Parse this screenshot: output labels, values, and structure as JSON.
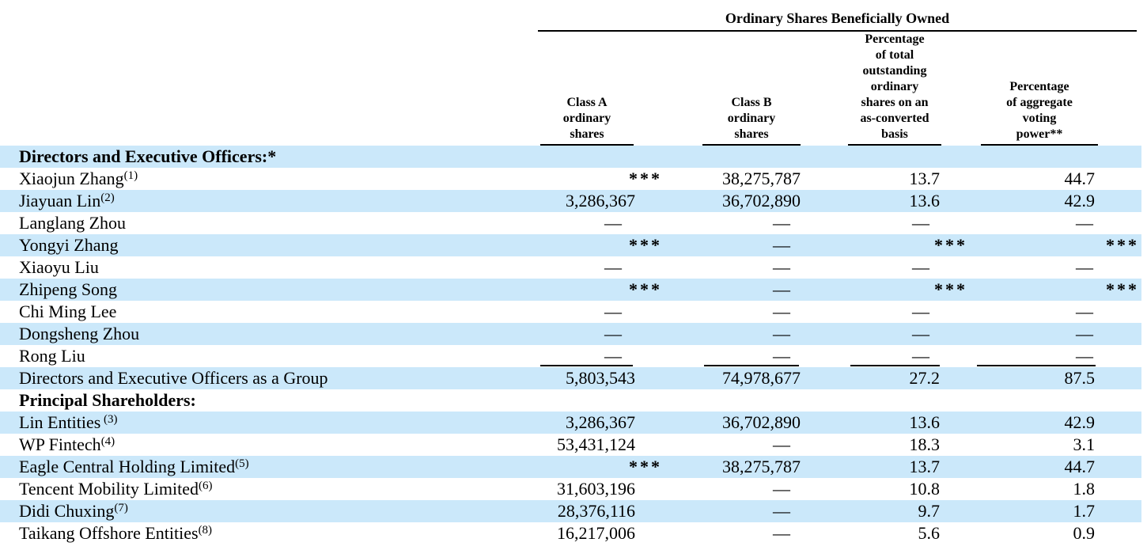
{
  "page": {
    "background_color": "#ffffff",
    "stripe_color": "#cbe8fa",
    "text_color": "#000000"
  },
  "table": {
    "group_header": "Ordinary Shares Beneficially Owned",
    "columns": [
      {
        "id": "class_a_shares",
        "label": "Class A\nordinary\nshares"
      },
      {
        "id": "class_b_shares",
        "label": "Class B\nordinary\nshares"
      },
      {
        "id": "pct_as_converted",
        "label": "Percentage\nof total\noutstanding\nordinary\nshares on an\nas-converted\nbasis"
      },
      {
        "id": "voting_power",
        "label": "Percentage\nof aggregate\nvoting\npower**"
      }
    ],
    "rows": [
      {
        "name": "Directors and Executive Officers:*",
        "footnote": "",
        "style": "section",
        "shaded": true,
        "values": [
          "",
          "",
          "",
          ""
        ]
      },
      {
        "name": "Xiaojun Zhang",
        "footnote": "(1)",
        "style": "normal",
        "shaded": false,
        "values": [
          "***",
          "38,275,787",
          "13.7",
          "44.7"
        ]
      },
      {
        "name": "Jiayuan Lin",
        "footnote": "(2)",
        "style": "normal",
        "shaded": true,
        "values": [
          "3,286,367",
          "36,702,890",
          "13.6",
          "42.9"
        ]
      },
      {
        "name": "Langlang Zhou",
        "footnote": "",
        "style": "normal",
        "shaded": false,
        "values": [
          "—",
          "—",
          "—",
          "—"
        ]
      },
      {
        "name": "Yongyi Zhang",
        "footnote": "",
        "style": "normal",
        "shaded": true,
        "values": [
          "***",
          "—",
          "***",
          "***"
        ]
      },
      {
        "name": "Xiaoyu Liu",
        "footnote": "",
        "style": "normal",
        "shaded": false,
        "values": [
          "—",
          "—",
          "—",
          "—"
        ]
      },
      {
        "name": "Zhipeng Song",
        "footnote": "",
        "style": "normal",
        "shaded": true,
        "values": [
          "***",
          "—",
          "***",
          "***"
        ]
      },
      {
        "name": "Chi Ming Lee",
        "footnote": "",
        "style": "normal",
        "shaded": false,
        "values": [
          "—",
          "—",
          "—",
          "—"
        ]
      },
      {
        "name": "Dongsheng Zhou",
        "footnote": "",
        "style": "normal",
        "shaded": true,
        "values": [
          "—",
          "—",
          "—",
          "—"
        ]
      },
      {
        "name": "Rong Liu",
        "footnote": "",
        "style": "normal",
        "shaded": false,
        "rule_below": true,
        "values": [
          "—",
          "—",
          "—",
          "—"
        ]
      },
      {
        "name": "Directors and Executive Officers as a Group",
        "footnote": "",
        "style": "normal",
        "shaded": true,
        "values": [
          "5,803,543",
          "74,978,677",
          "27.2",
          "87.5"
        ]
      },
      {
        "name": "Principal Shareholders:",
        "footnote": "",
        "style": "section",
        "shaded": false,
        "values": [
          "",
          "",
          "",
          ""
        ]
      },
      {
        "name": "Lin Entities",
        "footnote": " (3)",
        "style": "normal",
        "shaded": true,
        "values": [
          "3,286,367",
          "36,702,890",
          "13.6",
          "42.9"
        ]
      },
      {
        "name": "WP Fintech",
        "footnote": "(4)",
        "style": "normal",
        "shaded": false,
        "values": [
          "53,431,124",
          "—",
          "18.3",
          "3.1"
        ]
      },
      {
        "name": "Eagle Central Holding Limited",
        "footnote": "(5)",
        "style": "normal",
        "shaded": true,
        "values": [
          "***",
          "38,275,787",
          "13.7",
          "44.7"
        ]
      },
      {
        "name": "Tencent Mobility Limited",
        "footnote": "(6)",
        "style": "normal",
        "shaded": false,
        "values": [
          "31,603,196",
          "—",
          "10.8",
          "1.8"
        ]
      },
      {
        "name": "Didi Chuxing",
        "footnote": "(7)",
        "style": "normal",
        "shaded": true,
        "values": [
          "28,376,116",
          "—",
          "9.7",
          "1.7"
        ]
      },
      {
        "name": "Taikang Offshore Entities",
        "footnote": "(8)",
        "style": "normal",
        "shaded": false,
        "values": [
          "16,217,006",
          "—",
          "5.6",
          "0.9"
        ]
      }
    ]
  }
}
